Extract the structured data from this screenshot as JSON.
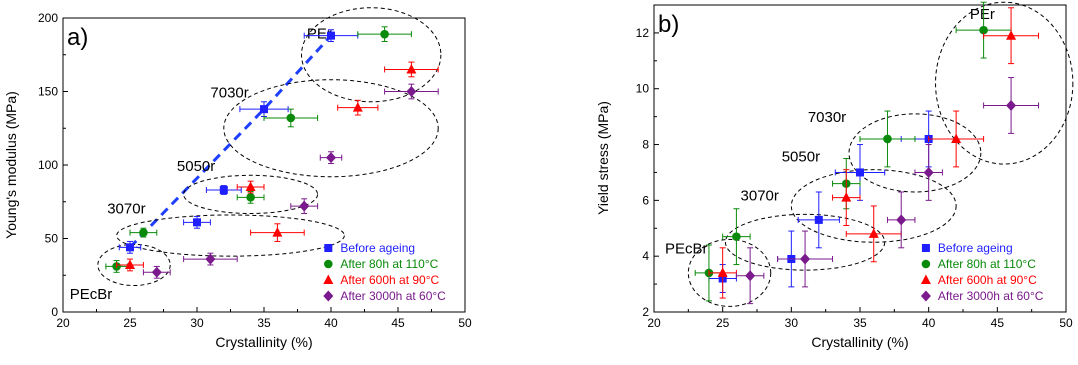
{
  "figure": {
    "legend_entries": [
      "Before ageing",
      "After 80h at 110°C",
      "After 600h at 90°C",
      "After 3000h at 60°C"
    ]
  },
  "chart_data": [
    {
      "type": "scatter",
      "panel_label": "a)",
      "xlabel": "Crystallinity (%)",
      "ylabel": "Young's modulus (MPa)",
      "xlim": [
        20,
        50
      ],
      "ylim": [
        0,
        200
      ],
      "xticks": [
        20,
        25,
        30,
        35,
        40,
        45,
        50
      ],
      "yticks": [
        0,
        50,
        100,
        150,
        200
      ],
      "grid": false,
      "legend_position": "bottom-right",
      "series": [
        {
          "name": "Before ageing",
          "color": "#1f1fff",
          "marker": "square",
          "points": [
            {
              "x": 25,
              "y": 44,
              "xerr": 0.8,
              "yerr": 4
            },
            {
              "x": 30,
              "y": 61,
              "xerr": 1,
              "yerr": 4
            },
            {
              "x": 32,
              "y": 83,
              "xerr": 1.3,
              "yerr": 3
            },
            {
              "x": 35,
              "y": 138,
              "xerr": 1.8,
              "yerr": 5
            },
            {
              "x": 40,
              "y": 188,
              "xerr": 2,
              "yerr": 4
            }
          ]
        },
        {
          "name": "After 80h at 110°C",
          "color": "#0a8a0a",
          "marker": "circle",
          "points": [
            {
              "x": 24,
              "y": 31,
              "xerr": 0.8,
              "yerr": 4
            },
            {
              "x": 26,
              "y": 54,
              "xerr": 1,
              "yerr": 3
            },
            {
              "x": 34,
              "y": 78,
              "xerr": 1,
              "yerr": 4
            },
            {
              "x": 37,
              "y": 132,
              "xerr": 2,
              "yerr": 6
            },
            {
              "x": 44,
              "y": 189,
              "xerr": 2,
              "yerr": 5
            }
          ]
        },
        {
          "name": "After 600h at 90°C",
          "color": "#ff0000",
          "marker": "triangle",
          "points": [
            {
              "x": 25,
              "y": 32,
              "xerr": 1,
              "yerr": 4
            },
            {
              "x": 34,
              "y": 85,
              "xerr": 1,
              "yerr": 4
            },
            {
              "x": 36,
              "y": 54,
              "xerr": 2,
              "yerr": 6
            },
            {
              "x": 42,
              "y": 139,
              "xerr": 1.5,
              "yerr": 5
            },
            {
              "x": 46,
              "y": 165,
              "xerr": 2,
              "yerr": 5
            }
          ]
        },
        {
          "name": "After 3000h at 60°C",
          "color": "#7a1a8c",
          "marker": "diamond",
          "points": [
            {
              "x": 27,
              "y": 27,
              "xerr": 1,
              "yerr": 4
            },
            {
              "x": 31,
              "y": 36,
              "xerr": 2,
              "yerr": 4
            },
            {
              "x": 38,
              "y": 72,
              "xerr": 1,
              "yerr": 5
            },
            {
              "x": 40,
              "y": 105,
              "xerr": 0.8,
              "yerr": 4
            },
            {
              "x": 46,
              "y": 150,
              "xerr": 2,
              "yerr": 5
            }
          ]
        }
      ],
      "trend_line": {
        "color": "#1f3fff",
        "style": "dashed",
        "points": [
          {
            "x": 25,
            "y": 44
          },
          {
            "x": 35,
            "y": 138
          },
          {
            "x": 40,
            "y": 188
          }
        ]
      },
      "groups": [
        {
          "label": "PEr",
          "cx": 43,
          "cy": 175,
          "rx": 5.2,
          "ry": 32,
          "label_x": 38.2,
          "label_y": 186
        },
        {
          "label": "7030r",
          "cx": 40,
          "cy": 125,
          "rx": 8,
          "ry": 33,
          "label_x": 31,
          "label_y": 146
        },
        {
          "label": "5050r",
          "cx": 34,
          "cy": 80,
          "rx": 5,
          "ry": 13,
          "label_x": 28.5,
          "label_y": 96
        },
        {
          "label": "3070r",
          "cx": 32.5,
          "cy": 52,
          "rx": 8.5,
          "ry": 14,
          "label_x": 23.3,
          "label_y": 67
        },
        {
          "label": "PEcBr",
          "cx": 25.3,
          "cy": 32,
          "rx": 2.7,
          "ry": 14,
          "label_x": 20.5,
          "label_y": 9
        }
      ]
    },
    {
      "type": "scatter",
      "panel_label": "b)",
      "xlabel": "Crystallinity (%)",
      "ylabel": "Yield stress (MPa)",
      "xlim": [
        20,
        50
      ],
      "ylim": [
        2,
        13
      ],
      "xticks": [
        20,
        25,
        30,
        35,
        40,
        45,
        50
      ],
      "yticks": [
        2,
        4,
        6,
        8,
        10,
        12
      ],
      "grid": false,
      "legend_position": "bottom-right",
      "series": [
        {
          "name": "Before ageing",
          "color": "#1f1fff",
          "marker": "square",
          "points": [
            {
              "x": 25,
              "y": 3.2,
              "xerr": 1,
              "yerr": 0.5
            },
            {
              "x": 30,
              "y": 3.9,
              "xerr": 1,
              "yerr": 1
            },
            {
              "x": 32,
              "y": 5.3,
              "xerr": 1.5,
              "yerr": 1
            },
            {
              "x": 35,
              "y": 7.0,
              "xerr": 1.8,
              "yerr": 1
            },
            {
              "x": 40,
              "y": 8.2,
              "xerr": 2,
              "yerr": 1
            }
          ]
        },
        {
          "name": "After 80h at 110°C",
          "color": "#0a8a0a",
          "marker": "circle",
          "points": [
            {
              "x": 24,
              "y": 3.4,
              "xerr": 1,
              "yerr": 1
            },
            {
              "x": 26,
              "y": 4.7,
              "xerr": 1,
              "yerr": 1
            },
            {
              "x": 34,
              "y": 6.6,
              "xerr": 1,
              "yerr": 0.9
            },
            {
              "x": 37,
              "y": 8.2,
              "xerr": 2,
              "yerr": 1
            },
            {
              "x": 44,
              "y": 12.1,
              "xerr": 2,
              "yerr": 1
            }
          ]
        },
        {
          "name": "After 600h at 90°C",
          "color": "#ff0000",
          "marker": "triangle",
          "points": [
            {
              "x": 25,
              "y": 3.4,
              "xerr": 1,
              "yerr": 0.9
            },
            {
              "x": 34,
              "y": 6.1,
              "xerr": 1,
              "yerr": 1
            },
            {
              "x": 36,
              "y": 4.8,
              "xerr": 2,
              "yerr": 1
            },
            {
              "x": 42,
              "y": 8.2,
              "xerr": 2,
              "yerr": 1
            },
            {
              "x": 46,
              "y": 11.9,
              "xerr": 2,
              "yerr": 1
            }
          ]
        },
        {
          "name": "After 3000h at 60°C",
          "color": "#7a1a8c",
          "marker": "diamond",
          "points": [
            {
              "x": 27,
              "y": 3.3,
              "xerr": 1,
              "yerr": 1
            },
            {
              "x": 31,
              "y": 3.9,
              "xerr": 2,
              "yerr": 1
            },
            {
              "x": 38,
              "y": 5.3,
              "xerr": 1,
              "yerr": 1
            },
            {
              "x": 40,
              "y": 7.0,
              "xerr": 1,
              "yerr": 1
            },
            {
              "x": 46,
              "y": 9.4,
              "xerr": 2,
              "yerr": 1
            }
          ]
        }
      ],
      "groups": [
        {
          "label": "PEr",
          "cx": 45.5,
          "cy": 10.2,
          "rx": 5,
          "ry": 2.9,
          "label_x": 43,
          "label_y": 12.5
        },
        {
          "label": "7030r",
          "cx": 39,
          "cy": 7.7,
          "rx": 4.8,
          "ry": 1.4,
          "label_x": 31.2,
          "label_y": 8.8
        },
        {
          "label": "5050r",
          "cx": 36,
          "cy": 5.8,
          "rx": 6,
          "ry": 1.3,
          "label_x": 29.3,
          "label_y": 7.4
        },
        {
          "label": "3070r",
          "cx": 31,
          "cy": 4.5,
          "rx": 5.8,
          "ry": 1.0,
          "label_x": 26.3,
          "label_y": 6.0
        },
        {
          "label": "PEcBr",
          "cx": 25.5,
          "cy": 3.4,
          "rx": 3,
          "ry": 1.2,
          "label_x": 20.8,
          "label_y": 4.1
        }
      ]
    }
  ]
}
